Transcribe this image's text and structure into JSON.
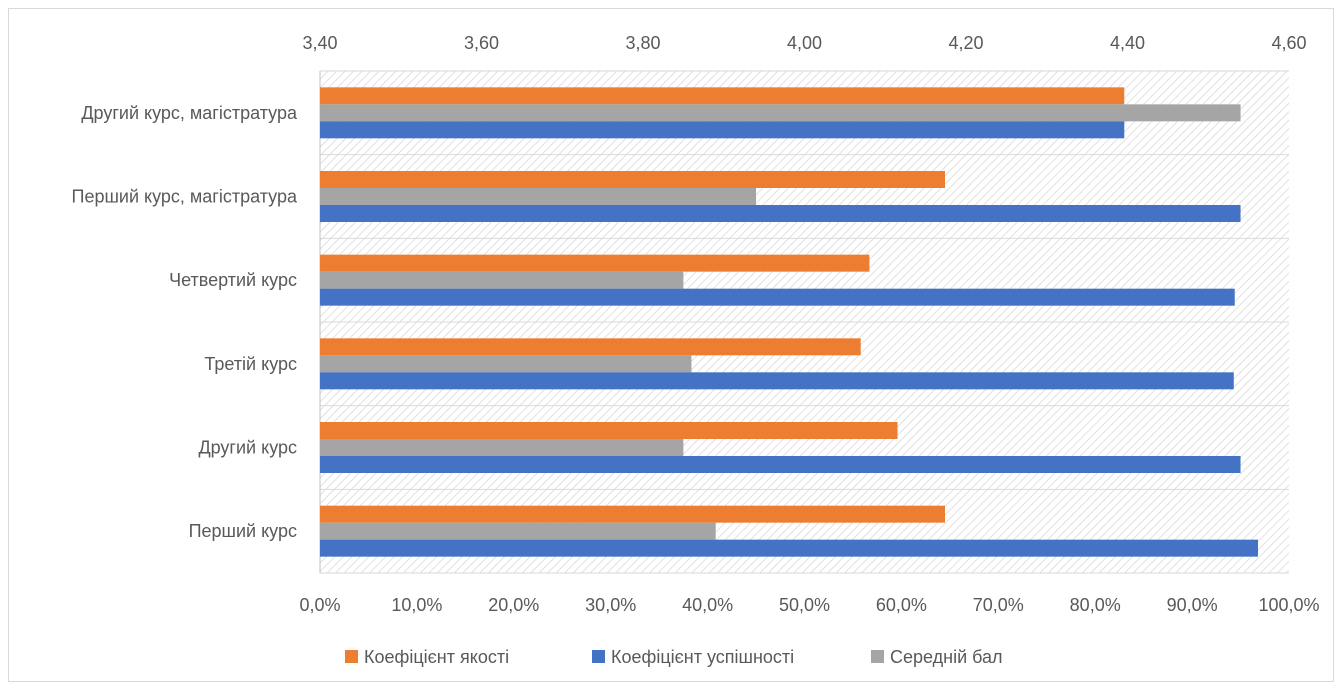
{
  "chart_data": {
    "type": "bar",
    "orientation": "horizontal",
    "categories": [
      "Другий курс, магістратура",
      "Перший курс, магістратура",
      "Четвертий курс",
      "Третій курс",
      "Другий курс",
      "Перший курс"
    ],
    "series": [
      {
        "name": "Коефіцієнт якості",
        "axis": "primary",
        "color": "#ED7D31",
        "values": [
          83.0,
          64.5,
          56.7,
          55.8,
          59.6,
          64.5
        ]
      },
      {
        "name": "Середній бал",
        "axis": "secondary",
        "color": "#A5A5A5",
        "values": [
          4.54,
          3.94,
          3.85,
          3.86,
          3.85,
          3.89
        ]
      },
      {
        "name": "Коефіцієнт успішності",
        "axis": "primary",
        "color": "#4472C4",
        "values": [
          83.0,
          95.0,
          94.4,
          94.3,
          95.0,
          96.8
        ]
      }
    ],
    "primary_axis": {
      "range": [
        0,
        100
      ],
      "ticks": [
        "0,0%",
        "10,0%",
        "20,0%",
        "30,0%",
        "40,0%",
        "50,0%",
        "60,0%",
        "70,0%",
        "80,0%",
        "90,0%",
        "100,0%"
      ]
    },
    "secondary_axis": {
      "range": [
        3.4,
        4.6
      ],
      "ticks": [
        "3,40",
        "3,60",
        "3,80",
        "4,00",
        "4,20",
        "4,40",
        "4,60"
      ]
    },
    "legend": {
      "position": "bottom",
      "items": [
        "Коефіцієнт якості",
        "Коефіцієнт успішності",
        "Середній бал"
      ]
    },
    "plot_background": "hatched",
    "grid": true
  }
}
